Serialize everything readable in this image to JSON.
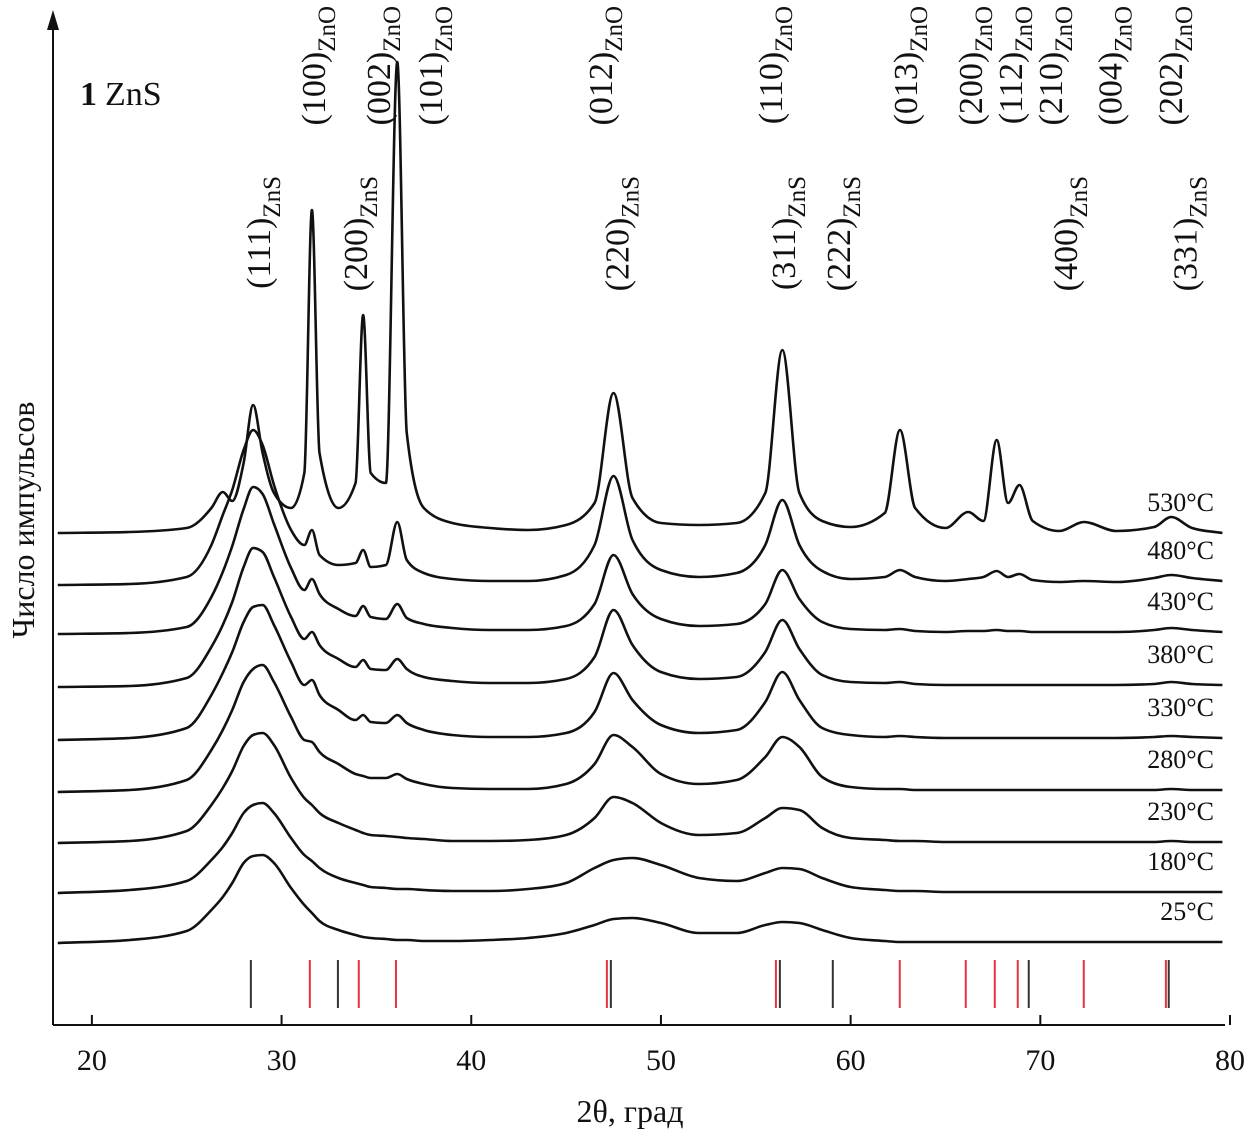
{
  "chart_data": {
    "type": "line",
    "panel_label": "1",
    "title": "ZnS",
    "x_label": "2θ, град",
    "y_label": "Число импульсов",
    "xlim": [
      17.95,
      80
    ],
    "ylim": [
      0,
      1010
    ],
    "xticks": [
      20,
      30,
      40,
      50,
      60,
      70,
      80
    ],
    "x": [
      18.2,
      22,
      25,
      26.3,
      26.9,
      27.4,
      28.0,
      28.5,
      29.0,
      29.6,
      30.5,
      31.2,
      31.6,
      32.0,
      33.0,
      33.9,
      34.3,
      34.7,
      35.5,
      36.1,
      36.6,
      37.5,
      39,
      41,
      43,
      45,
      46.5,
      47.5,
      48.5,
      50,
      52,
      54,
      55.5,
      56.4,
      57.3,
      58.5,
      60,
      61.8,
      62.6,
      63.4,
      65,
      66.2,
      67.0,
      67.7,
      68.3,
      68.9,
      69.6,
      71,
      72.3,
      74,
      76,
      76.9,
      78,
      79.6
    ],
    "series": [
      {
        "name": "530°C",
        "color": "#111111",
        "values": [
          492,
          493,
          497,
          517,
          533,
          524,
          562,
          620,
          572,
          532,
          517,
          552,
          815,
          572,
          517,
          542,
          710,
          552,
          542,
          963,
          592,
          517,
          502,
          497,
          495,
          500,
          522,
          632,
          527,
          502,
          500,
          502,
          532,
          675,
          532,
          504,
          498,
          512,
          595,
          517,
          497,
          513,
          504,
          585,
          522,
          540,
          504,
          494,
          503,
          494,
          498,
          508,
          497,
          492
        ]
      },
      {
        "name": "480°C",
        "color": "#111111",
        "values": [
          440,
          441,
          448,
          480,
          510,
          535,
          575,
          595,
          580,
          540,
          495,
          480,
          495,
          470,
          460,
          462,
          475,
          458,
          460,
          503,
          465,
          452,
          446,
          444,
          444,
          450,
          480,
          549,
          485,
          455,
          448,
          452,
          480,
          525,
          480,
          454,
          446,
          448,
          455,
          448,
          444,
          446,
          448,
          454,
          448,
          451,
          445,
          443,
          444,
          443,
          447,
          450,
          447,
          444
        ]
      },
      {
        "name": "430°C",
        "color": "#111111",
        "values": [
          391,
          392,
          398,
          428,
          453,
          479,
          516,
          538,
          531,
          501,
          457,
          435,
          446,
          431,
          416,
          409,
          419,
          408,
          406,
          421,
          407,
          401,
          397,
          395,
          395,
          399,
          421,
          470,
          431,
          406,
          399,
          401,
          421,
          455,
          426,
          403,
          396,
          395,
          396,
          394,
          393,
          394,
          394,
          395,
          394,
          394,
          393,
          393,
          393,
          393,
          395,
          397,
          395,
          393
        ]
      },
      {
        "name": "380°C",
        "color": "#111111",
        "values": [
          338,
          339,
          347,
          378,
          400,
          423,
          458,
          477,
          473,
          448,
          408,
          386,
          393,
          380,
          366,
          358,
          365,
          356,
          355,
          366,
          356,
          348,
          344,
          342,
          342,
          346,
          368,
          415,
          380,
          353,
          346,
          348,
          373,
          405,
          376,
          350,
          343,
          342,
          343,
          341,
          340,
          340,
          340,
          340,
          340,
          340,
          340,
          340,
          340,
          340,
          341,
          343,
          341,
          340
        ]
      },
      {
        "name": "330°C",
        "color": "#111111",
        "values": [
          285,
          287,
          297,
          330,
          352,
          373,
          403,
          418,
          420,
          400,
          363,
          340,
          345,
          330,
          315,
          305,
          310,
          303,
          302,
          310,
          302,
          295,
          290,
          288,
          288,
          292,
          313,
          352,
          325,
          300,
          292,
          295,
          323,
          353,
          325,
          297,
          290,
          288,
          289,
          288,
          287,
          287,
          287,
          287,
          287,
          287,
          287,
          287,
          287,
          287,
          288,
          289,
          288,
          287
        ]
      },
      {
        "name": "280°C",
        "color": "#111111",
        "values": [
          233,
          235,
          245,
          275,
          295,
          315,
          343,
          356,
          360,
          343,
          308,
          285,
          283,
          273,
          261,
          251,
          249,
          247,
          247,
          251,
          246,
          241,
          237,
          236,
          236,
          241,
          261,
          290,
          278,
          251,
          241,
          245,
          268,
          288,
          278,
          248,
          238,
          236,
          236,
          235,
          235,
          235,
          235,
          235,
          235,
          235,
          235,
          235,
          235,
          235,
          235,
          236,
          235,
          235
        ]
      },
      {
        "name": "230°C",
        "color": "#111111",
        "values": [
          182,
          184,
          194,
          220,
          237,
          254,
          279,
          290,
          292,
          280,
          247,
          227,
          220,
          212,
          202,
          195,
          192,
          190,
          189,
          188,
          187,
          186,
          184,
          184,
          185,
          190,
          207,
          228,
          222,
          202,
          190,
          192,
          207,
          217,
          215,
          197,
          187,
          185,
          184,
          184,
          183,
          183,
          183,
          183,
          183,
          183,
          183,
          183,
          183,
          183,
          183,
          184,
          183,
          183
        ]
      },
      {
        "name": "180°C",
        "color": "#111111",
        "values": [
          132,
          135,
          144,
          165,
          178,
          192,
          212,
          220,
          222,
          212,
          187,
          170,
          164,
          157,
          147,
          142,
          140,
          138,
          137,
          136,
          136,
          135,
          134,
          134,
          136,
          142,
          157,
          165,
          167,
          160,
          147,
          144,
          152,
          157,
          156,
          147,
          138,
          135,
          134,
          134,
          133,
          133,
          133,
          133,
          133,
          133,
          133,
          133,
          133,
          133,
          133,
          133,
          133,
          133
        ]
      },
      {
        "name": "25°C",
        "color": "#111111",
        "values": [
          82,
          85,
          94,
          115,
          128,
          142,
          162,
          169,
          170,
          162,
          137,
          120,
          112,
          104,
          95,
          90,
          88,
          87,
          86,
          85,
          85,
          84,
          84,
          85,
          87,
          92,
          100,
          106,
          107,
          102,
          92,
          92,
          100,
          103,
          102,
          95,
          87,
          84,
          83,
          83,
          83,
          83,
          83,
          83,
          83,
          83,
          83,
          83,
          83,
          83,
          83,
          83,
          83,
          83
        ]
      }
    ],
    "zno_labels": [
      {
        "x": 31.65,
        "label": "(100)",
        "phase": "ZnO"
      },
      {
        "x": 35.08,
        "label": "(002)",
        "phase": "ZnO"
      },
      {
        "x": 37.82,
        "label": "(101)",
        "phase": "ZnO"
      },
      {
        "x": 46.78,
        "label": "(012)",
        "phase": "ZnO"
      },
      {
        "x": 55.74,
        "label": "(110)",
        "phase": "ZnO"
      },
      {
        "x": 62.86,
        "label": "(013)",
        "phase": "ZnO"
      },
      {
        "x": 66.28,
        "label": "(200)",
        "phase": "ZnO"
      },
      {
        "x": 68.39,
        "label": "(112)",
        "phase": "ZnO"
      },
      {
        "x": 70.5,
        "label": "(210)",
        "phase": "ZnO"
      },
      {
        "x": 73.66,
        "label": "(004)",
        "phase": "ZnO"
      },
      {
        "x": 76.83,
        "label": "(202)",
        "phase": "ZnO"
      }
    ],
    "zns_labels": [
      {
        "x": 28.75,
        "label": "(111)",
        "phase": "ZnS"
      },
      {
        "x": 33.86,
        "label": "(200)",
        "phase": "ZnS"
      },
      {
        "x": 47.67,
        "label": "(220)",
        "phase": "ZnS"
      },
      {
        "x": 56.43,
        "label": "(311)",
        "phase": "ZnS"
      },
      {
        "x": 59.33,
        "label": "(222)",
        "phase": "ZnS"
      },
      {
        "x": 71.3,
        "label": "(400)",
        "phase": "ZnS"
      },
      {
        "x": 77.6,
        "label": "(331)",
        "phase": "ZnS"
      }
    ],
    "references": [
      {
        "color": "#333333",
        "x": [
          28.38,
          32.97,
          47.36,
          56.27,
          59.06,
          69.39,
          76.77
        ]
      },
      {
        "color": "#e8323c",
        "x": [
          31.49,
          34.07,
          36.03,
          47.15,
          56.06,
          62.59,
          66.07,
          67.6,
          68.81,
          72.29,
          76.62
        ]
      }
    ]
  }
}
